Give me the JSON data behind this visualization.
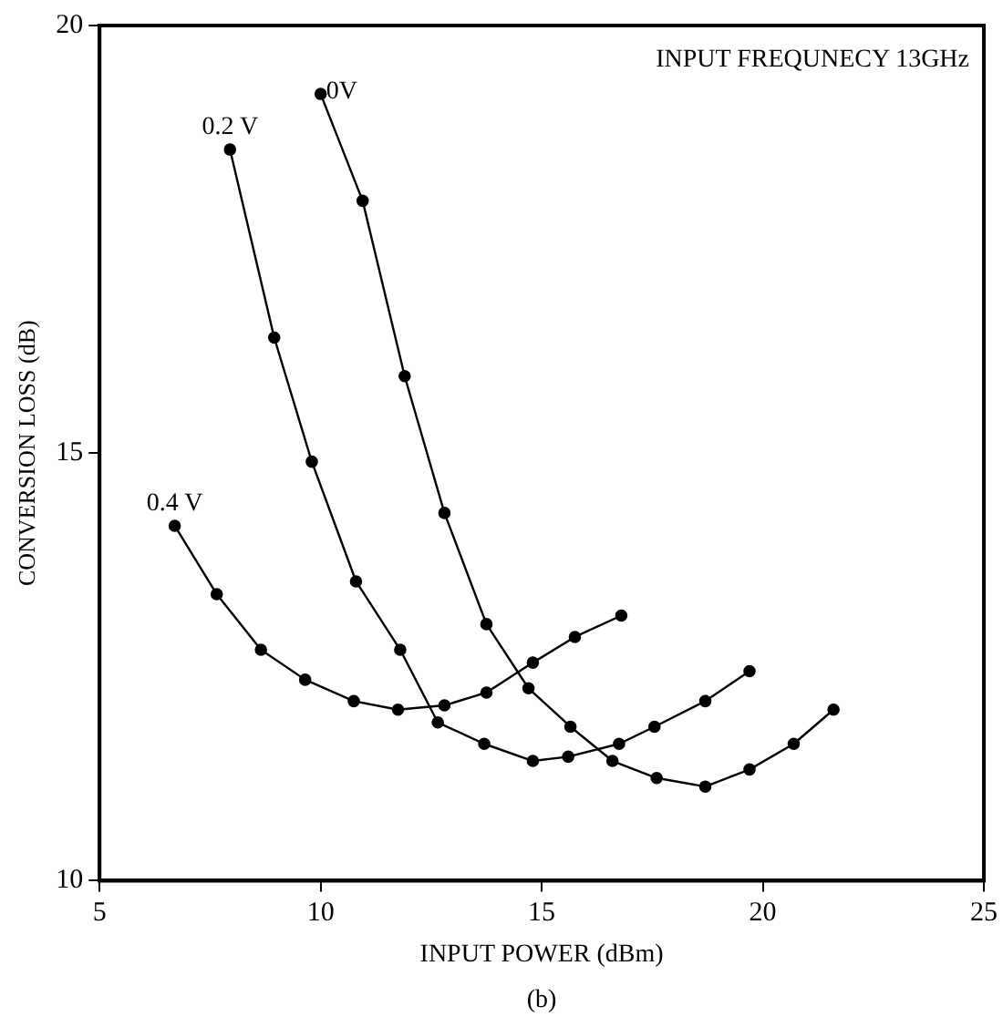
{
  "chart_data": {
    "type": "line",
    "xlabel": "INPUT POWER (dBm)",
    "ylabel": "CONVERSION LOSS (dB)",
    "annotations": [
      "INPUT FREQUNECY 13GHz",
      "(b)"
    ],
    "xlim": [
      5,
      25
    ],
    "xticks": [
      5,
      10,
      15,
      20,
      25
    ],
    "ylim": [
      10,
      20
    ],
    "yticks": [
      10,
      15,
      20
    ],
    "grid": false,
    "legend": false,
    "marker": "circle",
    "line_style": "solid",
    "series": [
      {
        "name": "0V",
        "color": "#000000",
        "x": [
          10.0,
          10.95,
          11.9,
          12.8,
          13.75,
          14.7,
          15.65,
          16.6,
          17.6,
          18.7,
          19.7,
          20.7,
          21.6
        ],
        "values": [
          19.2,
          17.95,
          15.9,
          14.3,
          13.0,
          12.25,
          11.8,
          11.4,
          11.2,
          11.1,
          11.3,
          11.6,
          12.0
        ]
      },
      {
        "name": "0.2 V",
        "color": "#000000",
        "x": [
          7.95,
          8.95,
          9.8,
          10.8,
          11.8,
          12.65,
          13.7,
          14.8,
          15.6,
          16.75,
          17.55,
          18.7,
          19.7
        ],
        "values": [
          18.55,
          16.35,
          14.9,
          13.5,
          12.7,
          11.85,
          11.6,
          11.4,
          11.45,
          11.6,
          11.8,
          12.1,
          12.45
        ]
      },
      {
        "name": "0.4 V",
        "color": "#000000",
        "x": [
          6.7,
          7.65,
          8.65,
          9.65,
          10.75,
          11.75,
          12.8,
          13.75,
          14.8,
          15.75,
          16.8
        ],
        "values": [
          14.15,
          13.35,
          12.7,
          12.35,
          12.1,
          12.0,
          12.05,
          12.2,
          12.55,
          12.85,
          13.1
        ]
      }
    ]
  }
}
